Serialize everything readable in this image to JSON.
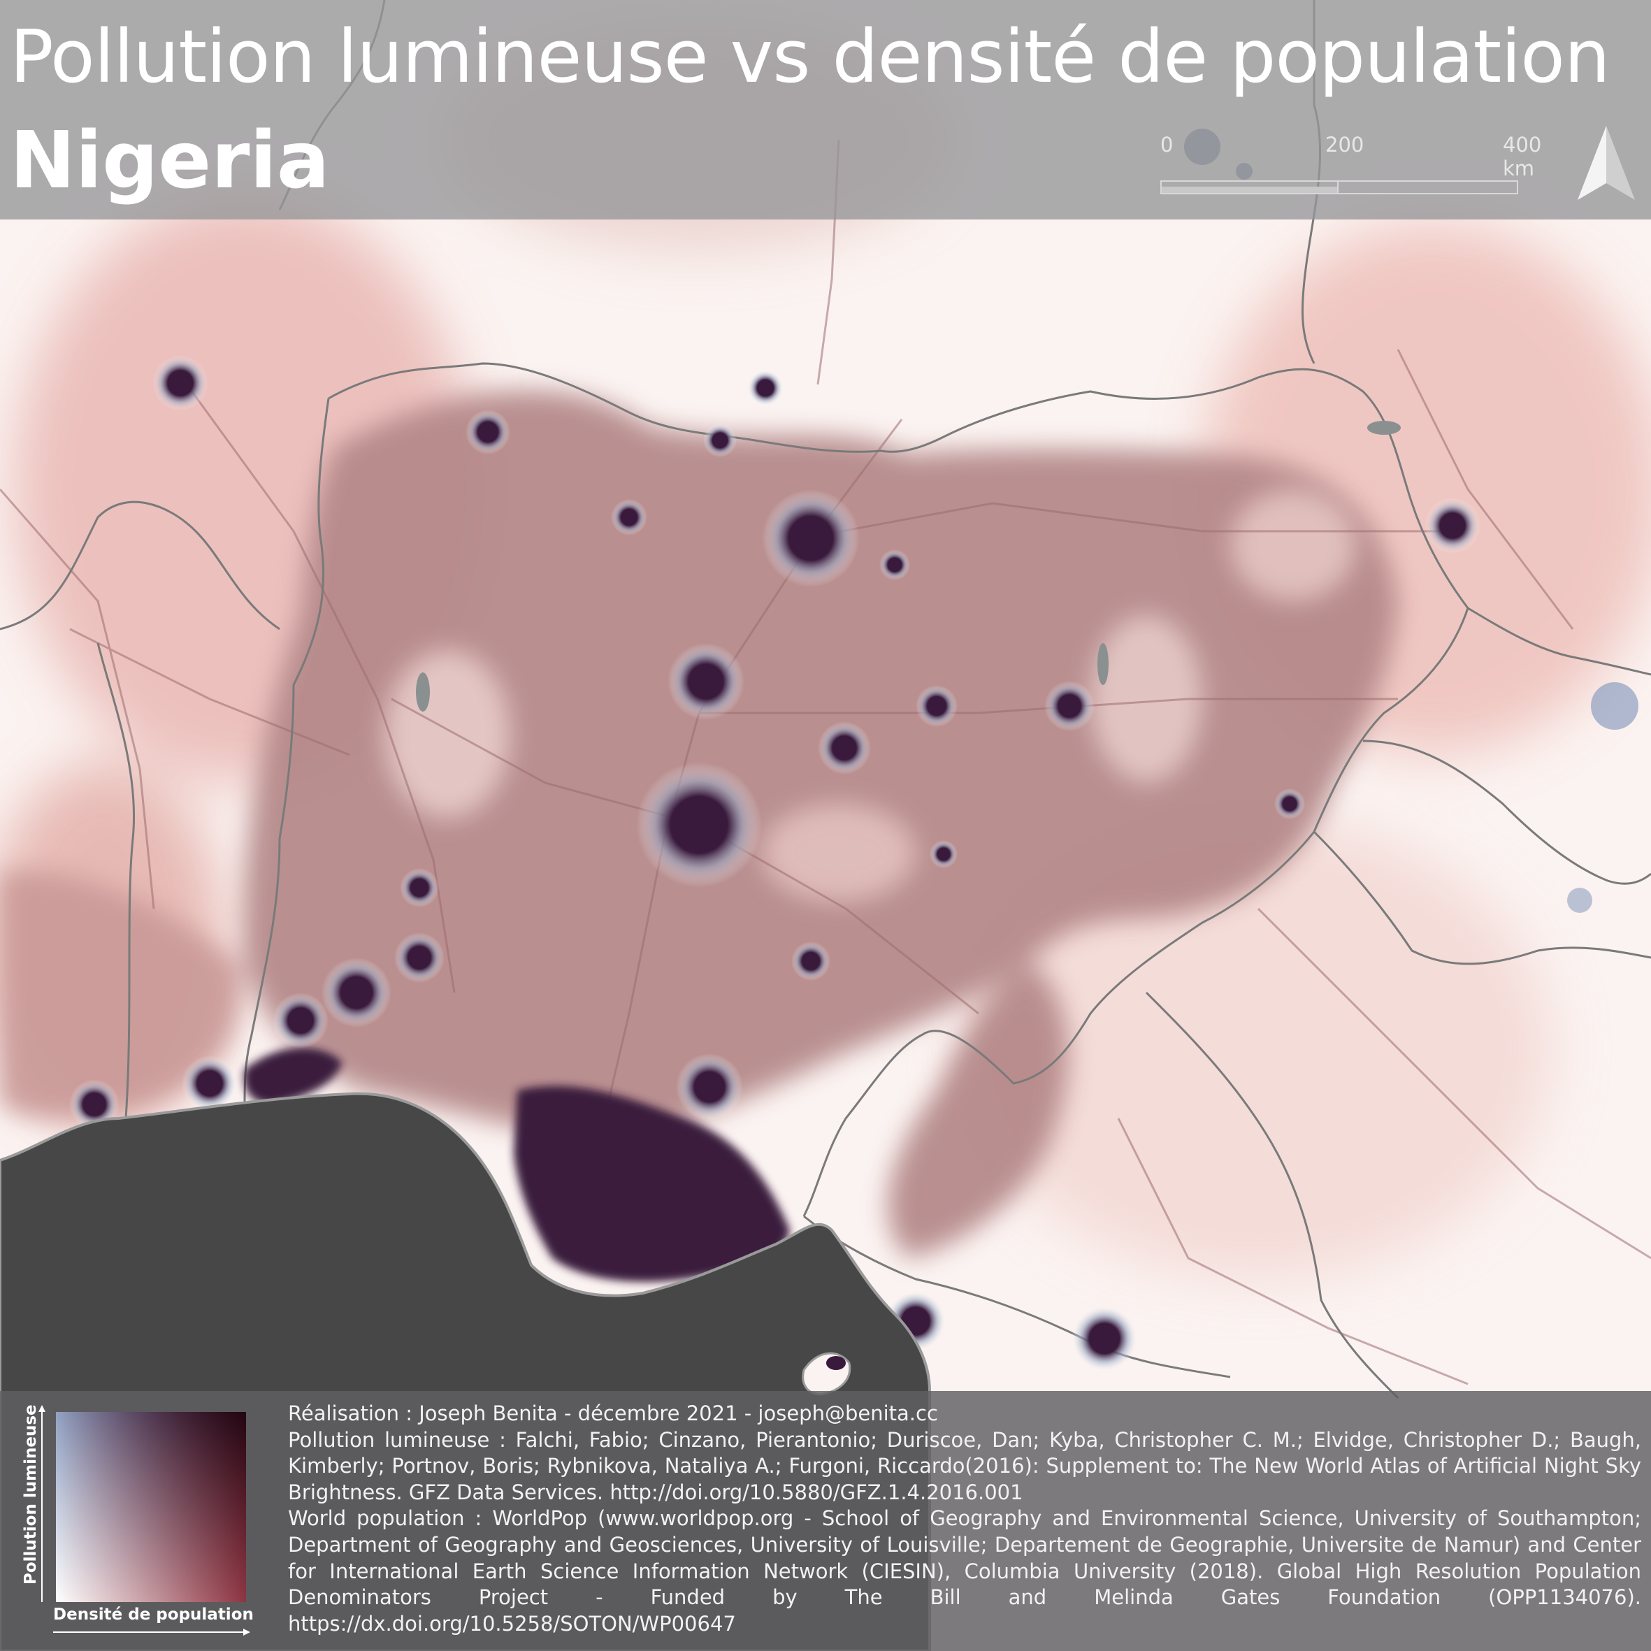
{
  "header": {
    "title": "Pollution lumineuse vs densité de population",
    "subtitle": "Nigeria"
  },
  "scalebar": {
    "labels": [
      "0",
      "200",
      "400 km"
    ]
  },
  "legend": {
    "y_label": "Pollution lumineuse",
    "x_label": "Densité de population",
    "colors": {
      "low_low": "#ffffff",
      "high_light": "#92a3c4",
      "high_density": "#7a1020",
      "high_both": "#3d1d41"
    }
  },
  "credits": {
    "author": "Réalisation : Joseph Benita - décembre 2021 - joseph@benita.cc",
    "light_source": "Pollution lumineuse : Falchi, Fabio; Cinzano, Pierantonio; Duriscoe, Dan; Kyba, Christopher C. M.; Elvidge, Christopher D.; Baugh, Kimberly; Portnov, Boris; Rybnikova, Nataliya A.; Furgoni, Riccardo(2016): Supplement to: The New World Atlas of Artificial Night Sky Brightness. GFZ Data Services. http://doi.org/10.5880/GFZ.1.4.2016.001",
    "population_source": "World population : WorldPop (www.worldpop.org - School of Geography and Environmental Science, University of Southampton; Department of Geography and Geosciences, University of Louisville; Departement de Geographie, Universite de Namur) and Center for International Earth Science Information Network (CIESIN), Columbia University (2018). Global High Resolution Population Denominators Project - Funded by The Bill and Melinda Gates Foundation (OPP1134076). https://dx.doi.org/10.5258/SOTON/WP00647"
  },
  "map_colors": {
    "background": "#fbf3f1",
    "sea": "#474747",
    "density_fill": "#b48788",
    "city_core": "#3a1a3c",
    "border": "#7a7a7a"
  }
}
